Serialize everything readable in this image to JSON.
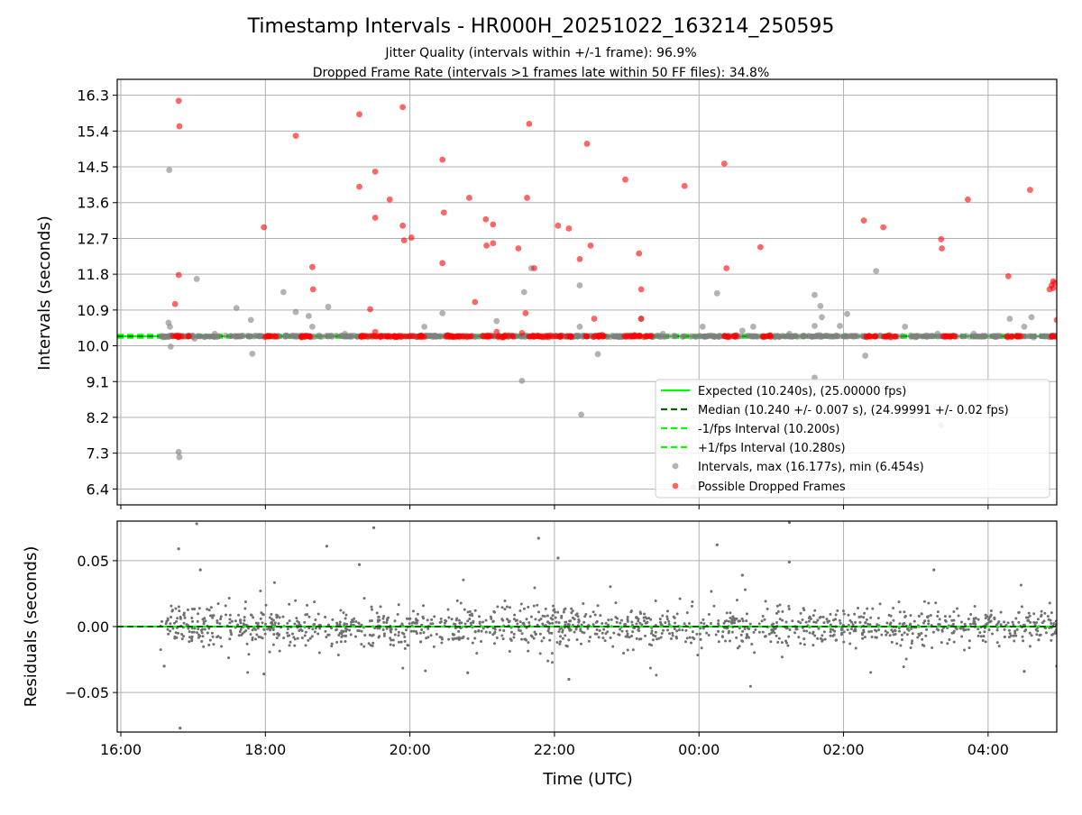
{
  "colors": {
    "expected": "#00ff00",
    "median": "#006400",
    "interval_band": "#00ff00",
    "intervals": "#808080",
    "dropped": "#ff0000",
    "residuals": "#707070",
    "grid": "#b0b0b0"
  },
  "chart_data": [
    {
      "type": "scatter",
      "title": "Timestamp Intervals - HR000H_20251022_163214_250595",
      "subtitle_1": "Jitter Quality (intervals within +/-1 frame): 96.9%",
      "subtitle_2": "Dropped Frame Rate (intervals >1 frames late within 50 FF files): 34.8%",
      "ylabel": "Intervals (seconds)",
      "xlabel": "Time (UTC)",
      "x_unit": "hours since 16:00 UTC",
      "xlim": [
        -0.05,
        12.95
      ],
      "ylim": [
        6.0,
        16.7
      ],
      "x_ticks": [
        0,
        2,
        4,
        6,
        8,
        10,
        12
      ],
      "x_tick_labels": [
        "16:00",
        "18:00",
        "20:00",
        "22:00",
        "00:00",
        "02:00",
        "04:00"
      ],
      "y_ticks": [
        6.4,
        7.3,
        8.2,
        9.1,
        10.0,
        10.9,
        11.8,
        12.7,
        13.6,
        14.5,
        15.4,
        16.3
      ],
      "y_tick_labels": [
        "6.4",
        "7.3",
        "8.2",
        "9.1",
        "10.0",
        "10.9",
        "11.8",
        "12.7",
        "13.6",
        "14.5",
        "15.4",
        "16.3"
      ],
      "grid": true,
      "legend_position": "lower-right",
      "reference_lines": [
        {
          "name": "Expected (10.240s), (25.00000 fps)",
          "y": 10.24,
          "style": "solid",
          "color_key": "expected"
        },
        {
          "name": "Median (10.240 +/- 0.007 s), (24.99991 +/- 0.02 fps)",
          "y": 10.24,
          "style": "dashed",
          "color_key": "median"
        },
        {
          "name": "-1/fps Interval (10.200s)",
          "y": 10.2,
          "style": "dashed",
          "color_key": "interval_band"
        },
        {
          "name": "+1/fps Interval (10.280s)",
          "y": 10.28,
          "style": "dashed",
          "color_key": "interval_band"
        }
      ],
      "series": [
        {
          "name": "Intervals, max (16.177s), min (6.454s)",
          "color_key": "intervals",
          "baseline": 10.24,
          "baseline_x_range": [
            0.55,
            12.95
          ],
          "points": [
            [
              0.67,
              14.42
            ],
            [
              0.66,
              10.58
            ],
            [
              0.68,
              10.48
            ],
            [
              0.69,
              9.98
            ],
            [
              0.8,
              7.33
            ],
            [
              0.81,
              7.2
            ],
            [
              1.05,
              11.68
            ],
            [
              1.02,
              10.18
            ],
            [
              1.3,
              10.3
            ],
            [
              1.6,
              10.95
            ],
            [
              1.8,
              10.65
            ],
            [
              1.82,
              9.8
            ],
            [
              2.25,
              11.35
            ],
            [
              2.42,
              10.85
            ],
            [
              2.6,
              10.75
            ],
            [
              2.65,
              10.48
            ],
            [
              2.87,
              10.98
            ],
            [
              3.1,
              10.3
            ],
            [
              4.2,
              10.48
            ],
            [
              4.45,
              10.82
            ],
            [
              5.2,
              10.62
            ],
            [
              5.58,
              11.35
            ],
            [
              5.68,
              11.95
            ],
            [
              5.55,
              9.12
            ],
            [
              6.35,
              11.52
            ],
            [
              6.35,
              10.48
            ],
            [
              6.37,
              8.27
            ],
            [
              6.6,
              9.79
            ],
            [
              7.2,
              10.68
            ],
            [
              7.5,
              10.3
            ],
            [
              8.05,
              10.48
            ],
            [
              8.25,
              11.32
            ],
            [
              8.6,
              10.38
            ],
            [
              8.75,
              10.48
            ],
            [
              9.25,
              10.3
            ],
            [
              9.6,
              11.28
            ],
            [
              9.68,
              11.0
            ],
            [
              9.7,
              10.72
            ],
            [
              9.6,
              10.5
            ],
            [
              9.6,
              9.2
            ],
            [
              9.95,
              10.5
            ],
            [
              10.05,
              10.8
            ],
            [
              10.3,
              9.75
            ],
            [
              10.45,
              11.88
            ],
            [
              10.85,
              10.48
            ],
            [
              11.3,
              10.3
            ],
            [
              11.35,
              8.0
            ],
            [
              11.8,
              10.3
            ],
            [
              12.3,
              10.68
            ],
            [
              12.5,
              10.48
            ],
            [
              12.6,
              10.72
            ],
            [
              7.92,
              6.45
            ]
          ]
        },
        {
          "name": "Possible Dropped Frames",
          "color_key": "dropped",
          "points": [
            [
              0.8,
              16.16
            ],
            [
              0.81,
              15.52
            ],
            [
              0.8,
              11.78
            ],
            [
              0.75,
              11.05
            ],
            [
              1.98,
              12.98
            ],
            [
              2.42,
              15.28
            ],
            [
              2.65,
              11.98
            ],
            [
              2.66,
              11.42
            ],
            [
              3.3,
              15.82
            ],
            [
              3.3,
              14.0
            ],
            [
              3.45,
              10.92
            ],
            [
              3.52,
              14.38
            ],
            [
              3.52,
              13.22
            ],
            [
              3.72,
              13.68
            ],
            [
              3.9,
              16.0
            ],
            [
              3.9,
              13.02
            ],
            [
              3.92,
              12.65
            ],
            [
              4.02,
              12.72
            ],
            [
              4.45,
              14.68
            ],
            [
              4.47,
              13.35
            ],
            [
              4.45,
              12.08
            ],
            [
              4.82,
              13.72
            ],
            [
              4.9,
              11.1
            ],
            [
              5.05,
              13.18
            ],
            [
              5.06,
              12.52
            ],
            [
              5.15,
              13.05
            ],
            [
              5.15,
              12.58
            ],
            [
              5.5,
              12.45
            ],
            [
              5.62,
              13.72
            ],
            [
              5.65,
              15.58
            ],
            [
              5.72,
              11.95
            ],
            [
              6.05,
              13.02
            ],
            [
              6.2,
              12.95
            ],
            [
              6.35,
              12.18
            ],
            [
              6.45,
              15.08
            ],
            [
              6.5,
              12.52
            ],
            [
              6.55,
              10.68
            ],
            [
              6.98,
              14.18
            ],
            [
              7.17,
              12.32
            ],
            [
              7.2,
              11.42
            ],
            [
              7.2,
              10.68
            ],
            [
              7.8,
              14.02
            ],
            [
              8.35,
              14.58
            ],
            [
              8.38,
              11.95
            ],
            [
              8.85,
              12.48
            ],
            [
              10.28,
              13.15
            ],
            [
              10.55,
              12.98
            ],
            [
              11.35,
              12.68
            ],
            [
              11.36,
              12.45
            ],
            [
              11.72,
              13.68
            ],
            [
              12.28,
              11.75
            ],
            [
              12.58,
              13.92
            ],
            [
              12.85,
              11.42
            ],
            [
              12.88,
              11.52
            ],
            [
              12.9,
              11.62
            ],
            [
              12.92,
              11.58
            ],
            [
              12.9,
              11.45
            ],
            [
              12.95,
              10.65
            ],
            [
              5.2,
              10.35
            ],
            [
              5.55,
              10.32
            ],
            [
              5.6,
              10.82
            ],
            [
              3.52,
              10.35
            ]
          ],
          "clusters_at_y": 10.24,
          "cluster_x_ranges": [
            [
              0.72,
              0.95
            ],
            [
              1.98,
              2.15
            ],
            [
              2.42,
              2.62
            ],
            [
              3.3,
              3.6
            ],
            [
              3.65,
              4.2
            ],
            [
              4.45,
              4.85
            ],
            [
              4.98,
              5.15
            ],
            [
              5.2,
              5.45
            ],
            [
              5.58,
              5.98
            ],
            [
              6.02,
              6.25
            ],
            [
              6.42,
              6.7
            ],
            [
              6.95,
              7.35
            ],
            [
              8.35,
              8.55
            ],
            [
              8.85,
              9.0
            ],
            [
              10.28,
              10.45
            ],
            [
              10.55,
              10.72
            ],
            [
              11.35,
              11.55
            ],
            [
              12.25,
              12.45
            ],
            [
              12.85,
              12.95
            ]
          ]
        }
      ]
    },
    {
      "type": "scatter",
      "ylabel": "Residuals (seconds)",
      "xlabel": "Time (UTC)",
      "xlim": [
        -0.05,
        12.95
      ],
      "ylim": [
        -0.08,
        0.08
      ],
      "y_ticks": [
        0.05,
        0.0,
        -0.05
      ],
      "y_tick_labels": [
        "0.05",
        "0.00",
        "−0.05"
      ],
      "x_ticks": [
        0,
        2,
        4,
        6,
        8,
        10,
        12
      ],
      "x_tick_labels": [
        "16:00",
        "18:00",
        "20:00",
        "22:00",
        "00:00",
        "02:00",
        "04:00"
      ],
      "grid": true,
      "reference_lines": [
        {
          "name": "Expected",
          "y": 0.0,
          "style": "solid",
          "color_key": "expected"
        },
        {
          "name": "Median",
          "y": 0.0,
          "style": "dashed",
          "color_key": "median"
        }
      ],
      "series": [
        {
          "name": "Residuals",
          "color_key": "residuals",
          "x_range": [
            0.55,
            12.95
          ],
          "count": 1400,
          "core_spread": 0.007,
          "outliers": [
            [
              0.8,
              0.059
            ],
            [
              1.05,
              0.078
            ],
            [
              1.1,
              0.043
            ],
            [
              0.82,
              -0.077
            ],
            [
              1.98,
              -0.036
            ],
            [
              2.85,
              0.061
            ],
            [
              3.5,
              0.075
            ],
            [
              3.3,
              0.047
            ],
            [
              5.78,
              0.067
            ],
            [
              6.05,
              0.052
            ],
            [
              8.25,
              0.062
            ],
            [
              9.25,
              0.079
            ],
            [
              9.25,
              0.049
            ],
            [
              11.25,
              0.043
            ],
            [
              0.6,
              -0.03
            ],
            [
              4.8,
              -0.035
            ],
            [
              6.2,
              -0.04
            ],
            [
              12.5,
              -0.034
            ],
            [
              12.95,
              -0.03
            ],
            [
              8.6,
              0.039
            ]
          ]
        }
      ]
    }
  ]
}
